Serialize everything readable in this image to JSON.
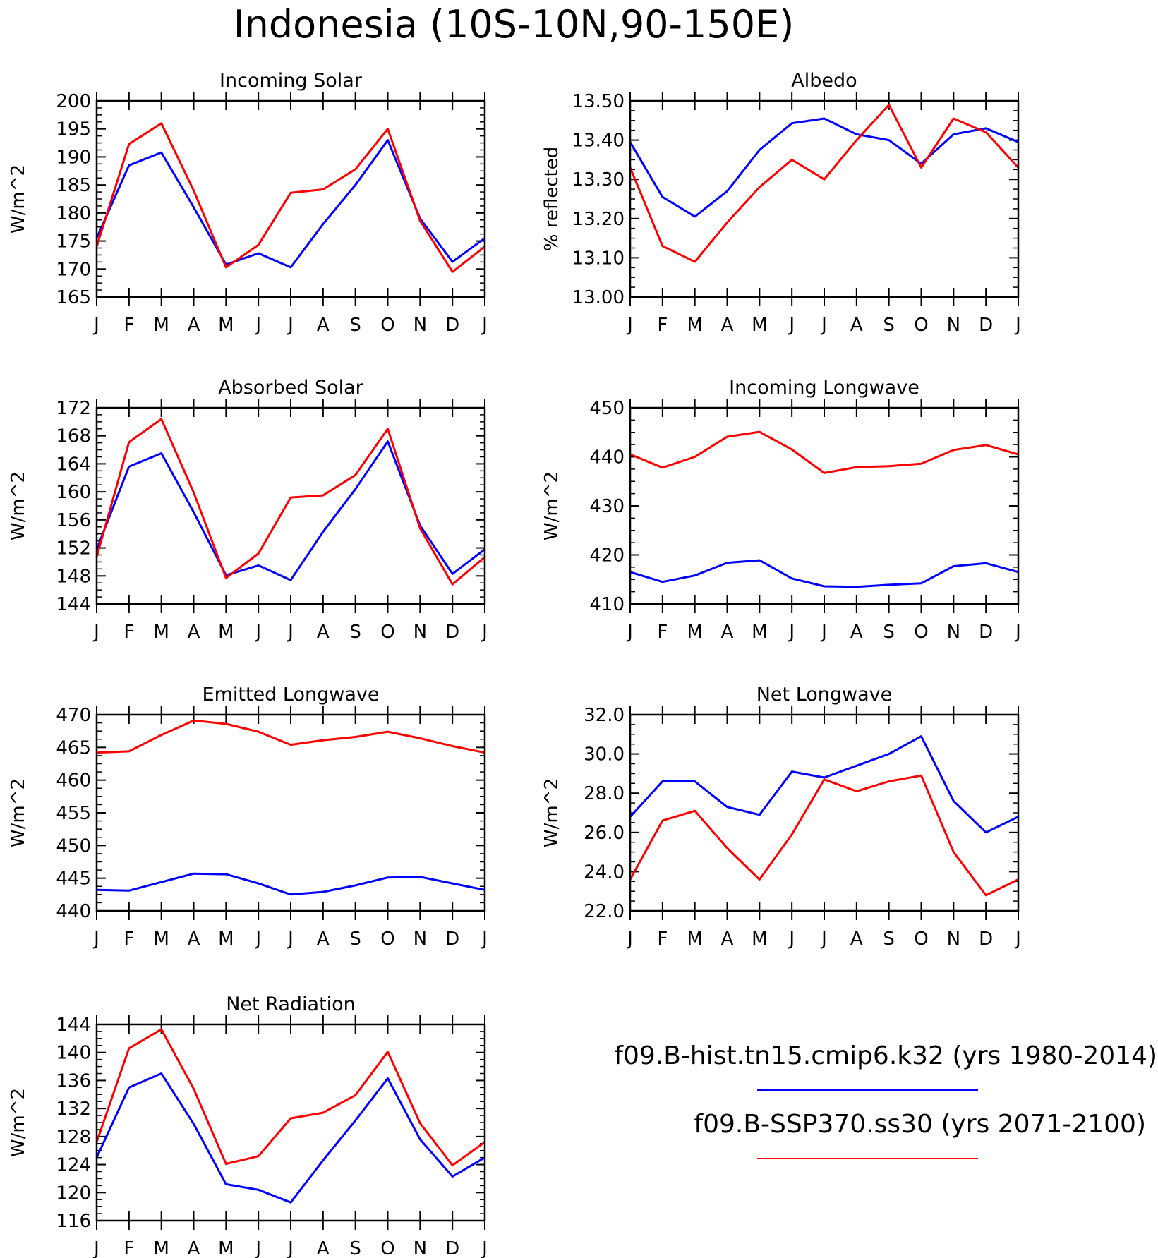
{
  "title": "Indonesia (10S-10N,90-150E)",
  "months": [
    "J",
    "F",
    "M",
    "A",
    "M",
    "J",
    "J",
    "A",
    "S",
    "O",
    "N",
    "D",
    "J"
  ],
  "colors": {
    "historical": "#0000ff",
    "future": "#ff0000",
    "axis": "#000000"
  },
  "legend": [
    {
      "label": "f09.B-hist.tn15.cmip6.k32 (yrs 1980-2014)",
      "series": "historical"
    },
    {
      "label": "f09.B-SSP370.ss30 (yrs 2071-2100)",
      "series": "future"
    }
  ],
  "chart_data": [
    {
      "type": "line",
      "title": "Incoming Solar",
      "ylabel": "W/m^2",
      "ylim": [
        165,
        200
      ],
      "yticks": [
        "165",
        "170",
        "175",
        "180",
        "185",
        "190",
        "195",
        "200"
      ],
      "x": [
        "J",
        "F",
        "M",
        "A",
        "M",
        "J",
        "J",
        "A",
        "S",
        "O",
        "N",
        "D",
        "J"
      ],
      "series": [
        {
          "key": "historical",
          "values": [
            175.5,
            188.5,
            190.8,
            181.0,
            170.8,
            172.8,
            170.3,
            178.0,
            185.0,
            193.0,
            179.0,
            171.3,
            175.5
          ]
        },
        {
          "key": "future",
          "values": [
            174.0,
            192.3,
            196.0,
            184.0,
            170.3,
            174.3,
            183.6,
            184.2,
            187.8,
            195.0,
            178.6,
            169.5,
            174.0
          ]
        }
      ]
    },
    {
      "type": "line",
      "title": "Albedo",
      "ylabel": "% reflected",
      "ylim": [
        13.0,
        13.5
      ],
      "yticks": [
        "13.00",
        "13.10",
        "13.20",
        "13.30",
        "13.40",
        "13.50"
      ],
      "x": [
        "J",
        "F",
        "M",
        "A",
        "M",
        "J",
        "J",
        "A",
        "S",
        "O",
        "N",
        "D",
        "J"
      ],
      "series": [
        {
          "key": "historical",
          "values": [
            13.395,
            13.255,
            13.205,
            13.27,
            13.375,
            13.443,
            13.455,
            13.415,
            13.4,
            13.34,
            13.415,
            13.43,
            13.395
          ]
        },
        {
          "key": "future",
          "values": [
            13.33,
            13.13,
            13.09,
            13.19,
            13.28,
            13.35,
            13.3,
            13.4,
            13.49,
            13.33,
            13.455,
            13.42,
            13.33
          ]
        }
      ]
    },
    {
      "type": "line",
      "title": "Absorbed Solar",
      "ylabel": "W/m^2",
      "ylim": [
        144,
        172
      ],
      "yticks": [
        "144",
        "148",
        "152",
        "156",
        "160",
        "164",
        "168",
        "172"
      ],
      "x": [
        "J",
        "F",
        "M",
        "A",
        "M",
        "J",
        "J",
        "A",
        "S",
        "O",
        "N",
        "D",
        "J"
      ],
      "series": [
        {
          "key": "historical",
          "values": [
            151.8,
            163.6,
            165.5,
            157.1,
            148.1,
            149.5,
            147.4,
            154.3,
            160.4,
            167.2,
            155.2,
            148.3,
            151.8
          ]
        },
        {
          "key": "future",
          "values": [
            150.7,
            167.1,
            170.4,
            159.9,
            147.7,
            151.2,
            159.2,
            159.5,
            162.4,
            169.0,
            154.8,
            146.8,
            150.7
          ]
        }
      ]
    },
    {
      "type": "line",
      "title": "Incoming Longwave",
      "ylabel": "W/m^2",
      "ylim": [
        410,
        450
      ],
      "yticks": [
        "410",
        "420",
        "430",
        "440",
        "450"
      ],
      "x": [
        "J",
        "F",
        "M",
        "A",
        "M",
        "J",
        "J",
        "A",
        "S",
        "O",
        "N",
        "D",
        "J"
      ],
      "series": [
        {
          "key": "historical",
          "values": [
            416.5,
            414.5,
            415.8,
            418.4,
            418.9,
            415.2,
            413.6,
            413.5,
            413.9,
            414.2,
            417.7,
            418.3,
            416.5
          ]
        },
        {
          "key": "future",
          "values": [
            440.5,
            437.8,
            440.0,
            444.1,
            445.1,
            441.5,
            436.7,
            437.9,
            438.1,
            438.6,
            441.4,
            442.4,
            440.5
          ]
        }
      ]
    },
    {
      "type": "line",
      "title": "Emitted Longwave",
      "ylabel": "W/m^2",
      "ylim": [
        440,
        470
      ],
      "yticks": [
        "440",
        "445",
        "450",
        "455",
        "460",
        "465",
        "470"
      ],
      "x": [
        "J",
        "F",
        "M",
        "A",
        "M",
        "J",
        "J",
        "A",
        "S",
        "O",
        "N",
        "D",
        "J"
      ],
      "series": [
        {
          "key": "historical",
          "values": [
            443.2,
            443.1,
            444.4,
            445.7,
            445.6,
            444.2,
            442.5,
            442.9,
            443.9,
            445.1,
            445.2,
            444.2,
            443.2
          ]
        },
        {
          "key": "future",
          "values": [
            464.2,
            464.4,
            466.9,
            469.1,
            468.6,
            467.4,
            465.4,
            466.1,
            466.6,
            467.4,
            466.4,
            465.2,
            464.2
          ]
        }
      ]
    },
    {
      "type": "line",
      "title": "Net Longwave",
      "ylabel": "W/m^2",
      "ylim": [
        22.0,
        32.0
      ],
      "yticks": [
        "22.0",
        "24.0",
        "26.0",
        "28.0",
        "30.0",
        "32.0"
      ],
      "x": [
        "J",
        "F",
        "M",
        "A",
        "M",
        "J",
        "J",
        "A",
        "S",
        "O",
        "N",
        "D",
        "J"
      ],
      "series": [
        {
          "key": "historical",
          "values": [
            26.8,
            28.6,
            28.6,
            27.3,
            26.9,
            29.1,
            28.8,
            29.4,
            30.0,
            30.9,
            27.6,
            26.0,
            26.8
          ]
        },
        {
          "key": "future",
          "values": [
            23.6,
            26.6,
            27.1,
            25.2,
            23.6,
            25.9,
            28.7,
            28.1,
            28.6,
            28.9,
            25.0,
            22.8,
            23.6
          ]
        }
      ]
    },
    {
      "type": "line",
      "title": "Net Radiation",
      "ylabel": "W/m^2",
      "ylim": [
        116,
        144
      ],
      "yticks": [
        "116",
        "120",
        "124",
        "128",
        "132",
        "136",
        "140",
        "144"
      ],
      "x": [
        "J",
        "F",
        "M",
        "A",
        "M",
        "J",
        "J",
        "A",
        "S",
        "O",
        "N",
        "D",
        "J"
      ],
      "series": [
        {
          "key": "historical",
          "values": [
            125.0,
            135.0,
            137.0,
            129.8,
            121.2,
            120.4,
            118.6,
            124.6,
            130.3,
            136.3,
            127.6,
            122.3,
            125.0
          ]
        },
        {
          "key": "future",
          "values": [
            127.2,
            140.6,
            143.3,
            134.8,
            124.1,
            125.2,
            130.6,
            131.4,
            133.9,
            140.1,
            129.9,
            123.9,
            127.2
          ]
        }
      ]
    }
  ]
}
